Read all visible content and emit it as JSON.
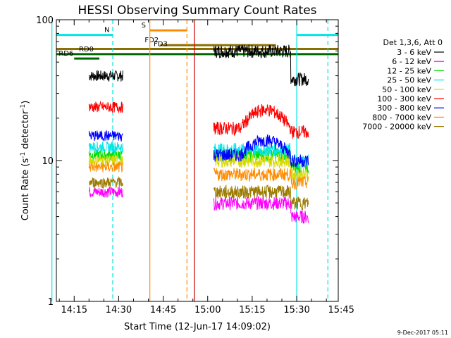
{
  "chart_data": {
    "type": "line",
    "title": "HESSI Observing Summary Count Rates",
    "xlabel": "Start Time (12-Jun-17 14:09:02)",
    "ylabel_main": "Count Rate (s",
    "ylabel_sup": "-1",
    "ylabel_mid": " detector",
    "ylabel_sup2": "-1",
    "ylabel_end": ")",
    "y_scale": "log",
    "ylim": [
      1,
      100
    ],
    "xlim_minutes": [
      0,
      95
    ],
    "x_ticks": [
      {
        "label": "14:15",
        "min": 6
      },
      {
        "label": "14:30",
        "min": 21
      },
      {
        "label": "14:45",
        "min": 36
      },
      {
        "label": "15:00",
        "min": 51
      },
      {
        "label": "15:15",
        "min": 66
      },
      {
        "label": "15:30",
        "min": 81
      },
      {
        "label": "15:45",
        "min": 96
      }
    ],
    "y_ticks": [
      {
        "label": "1",
        "value": 1
      },
      {
        "label": "10",
        "value": 10
      },
      {
        "label": "100",
        "value": 100
      }
    ],
    "legend_header": "Det 1,3,6, Att 0",
    "legend_placement": "right",
    "series": [
      {
        "name": "3 - 6 keV",
        "color": "#000000",
        "before": 40,
        "after": 60,
        "after_tail": 38
      },
      {
        "name": "6 - 12 keV",
        "color": "#ff00ff",
        "before": 6,
        "after": 5,
        "after_tail": 4
      },
      {
        "name": "12 - 25 keV",
        "color": "#00dd00",
        "before": 11,
        "after": 11,
        "after_tail": 9
      },
      {
        "name": "25 - 50 keV",
        "color": "#00e5e5",
        "before": 12.5,
        "after": 12,
        "after_tail": 10
      },
      {
        "name": "50 - 100 keV",
        "color": "#d8d800",
        "before": 10,
        "after": 10,
        "after_tail": 8
      },
      {
        "name": "100 - 300 keV",
        "color": "#ff0000",
        "before": 24,
        "after": 17,
        "after_peak": 23,
        "after_tail": 16
      },
      {
        "name": "300 - 800 keV",
        "color": "#0000ff",
        "before": 15,
        "after": 11,
        "after_peak": 14,
        "after_tail": 10
      },
      {
        "name": "800 - 7000 keV",
        "color": "#ff8c00",
        "before": 9,
        "after": 8,
        "after_tail": 7
      },
      {
        "name": "7000 - 20000 keV",
        "color": "#9b7a00",
        "before": 7,
        "after": 6,
        "after_tail": 5
      }
    ],
    "segments": {
      "before": [
        11,
        22.5
      ],
      "after": [
        53,
        62
      ],
      "peak_window": [
        62,
        79
      ],
      "tail": [
        79,
        85
      ]
    },
    "flag_bars": [
      {
        "label": "N",
        "color": "#00e5e5",
        "ranges": [
          [
            0,
            19
          ],
          [
            81,
            100
          ]
        ],
        "y": 78
      },
      {
        "label": "S",
        "color": "#ff8c00",
        "ranges": [
          [
            31.5,
            44
          ]
        ],
        "y": 84
      },
      {
        "label": "FD2",
        "color": "#8a7000",
        "ranges": [
          [
            35,
            74
          ]
        ],
        "y": 66
      },
      {
        "label": "FD3",
        "color": "#8a7000",
        "ranges": [
          [
            0,
            100
          ]
        ],
        "y": 62
      },
      {
        "label": "RD0",
        "color": "#006600",
        "ranges": [
          [
            0,
            100
          ]
        ],
        "y": 57
      },
      {
        "label": "RD6",
        "color": "#006600",
        "ranges": [
          [
            6,
            14.5
          ]
        ],
        "y": 53
      }
    ],
    "vlines": [
      {
        "min": -1.5,
        "color": "#00e5e5",
        "style": "solid"
      },
      {
        "min": 19,
        "color": "#00e5e5",
        "style": "dashed"
      },
      {
        "min": 31.5,
        "color": "#ff8c00",
        "style": "solid"
      },
      {
        "min": 44,
        "color": "#ff8c00",
        "style": "dashed"
      },
      {
        "min": 46.5,
        "color": "#cc0000",
        "style": "solid"
      },
      {
        "min": 81,
        "color": "#00e5e5",
        "style": "solid"
      },
      {
        "min": 91.5,
        "color": "#00e5e5",
        "style": "dashed"
      }
    ]
  },
  "footer": {
    "timestamp": "9-Dec-2017 05:11"
  }
}
